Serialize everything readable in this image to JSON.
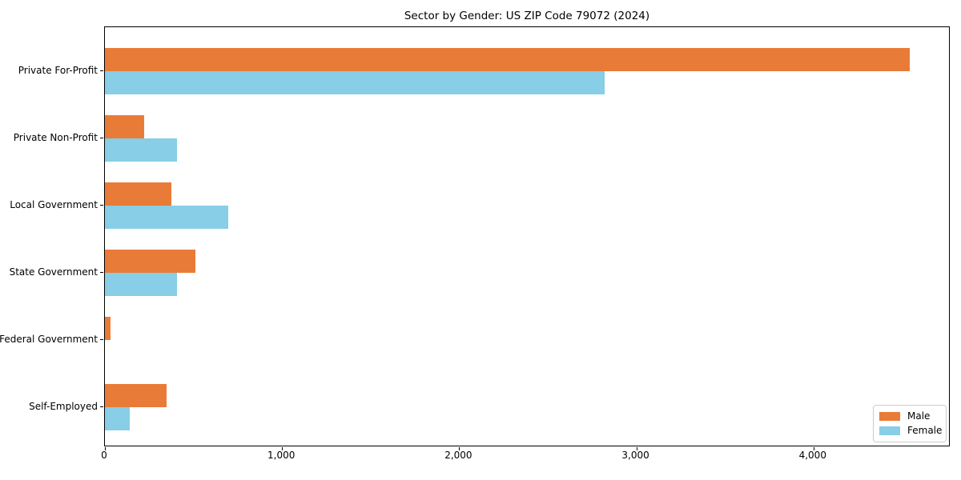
{
  "chart_data": {
    "type": "bar",
    "orientation": "horizontal",
    "title": "Sector by Gender: US ZIP Code 79072 (2024)",
    "categories": [
      "Private For-Profit",
      "Private Non-Profit",
      "Local Government",
      "State Government",
      "Federal Government",
      "Self-Employed"
    ],
    "series": [
      {
        "name": "Male",
        "color": "#E97B38",
        "values": [
          4545,
          220,
          375,
          510,
          32,
          350
        ]
      },
      {
        "name": "Female",
        "color": "#87CEE6",
        "values": [
          2820,
          405,
          695,
          405,
          0,
          140
        ]
      }
    ],
    "xlabel": "",
    "ylabel": "",
    "xlim": [
      0,
      4774
    ],
    "xticks": [
      0,
      1000,
      2000,
      3000,
      4000
    ],
    "xtick_labels": [
      "0",
      "1,000",
      "2,000",
      "3,000",
      "4,000"
    ],
    "grid": false,
    "legend_position": "lower right",
    "background_color": "#ffffff",
    "spine_color": "#000000"
  }
}
